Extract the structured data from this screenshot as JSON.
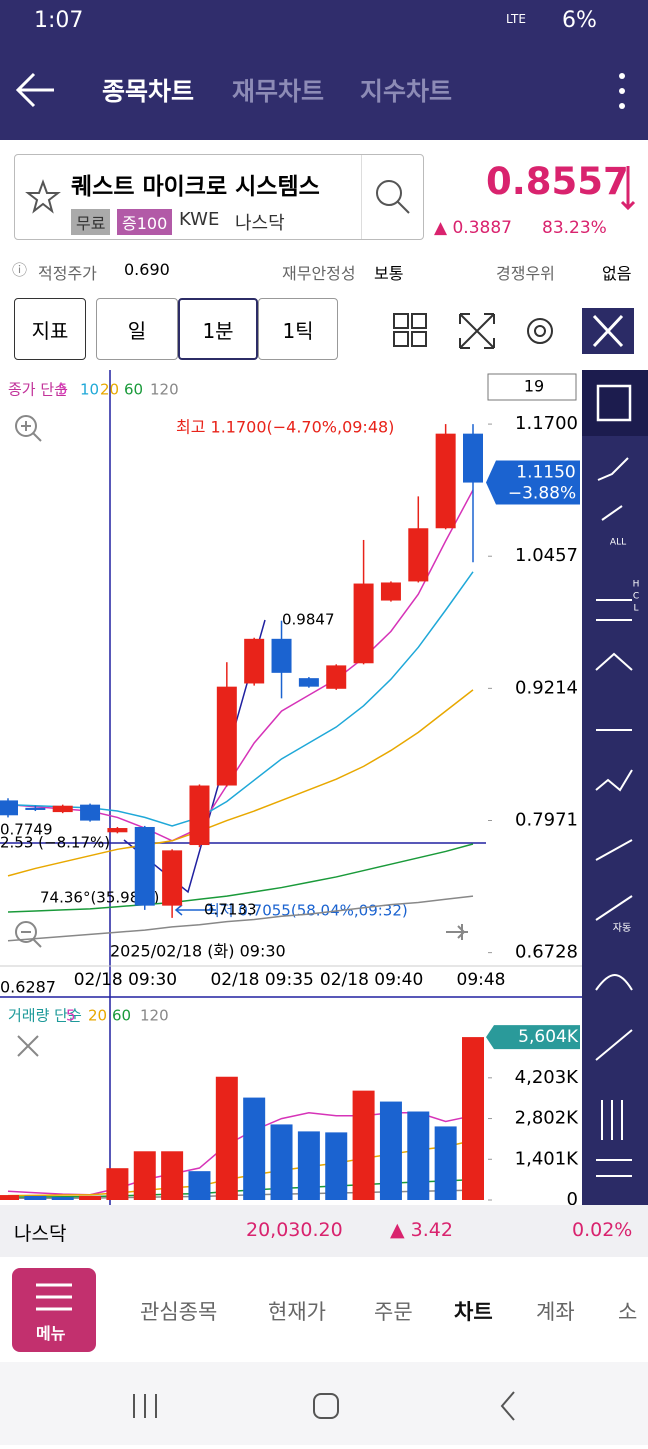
{
  "status_bar": {
    "time": "1:07",
    "network": "LTE",
    "battery": "6%"
  },
  "tabs": [
    "종목차트",
    "재무차트",
    "지수차트"
  ],
  "stock": {
    "name": "퀘스트 마이크로 시스템스",
    "tags": [
      "무료",
      "증100"
    ],
    "ticker": "KWE",
    "market": "나스닥",
    "price": "0.8557",
    "change": "0.3887",
    "change_pct": "83.23%"
  },
  "info": [
    {
      "label": "적정주가",
      "value": "0.690"
    },
    {
      "label": "재무안정성",
      "value": "보통"
    },
    {
      "label": "경쟁우위",
      "value": "없음"
    }
  ],
  "toolbar": [
    "지표",
    "일",
    "1분",
    "1틱"
  ],
  "period_input": "19",
  "side_labels": [
    "ALL",
    "H",
    "C",
    "L",
    "자동"
  ],
  "chart_data": [
    {
      "type": "candlestick",
      "legend_title": "종가 단순",
      "categories": [
        "",
        null,
        null,
        null,
        "02/18 09:30",
        null,
        null,
        null,
        null,
        "02/18 09:35",
        null,
        null,
        null,
        "02/18 09:40",
        null,
        null,
        null,
        "09:48"
      ],
      "open": [
        0.816,
        0.809,
        0.805,
        0.812,
        0.786,
        0.791,
        0.717,
        0.774,
        0.83,
        0.926,
        0.968,
        0.931,
        0.921,
        0.945,
        1.004,
        1.022,
        1.072,
        1.161
      ],
      "high": [
        0.818,
        0.811,
        0.812,
        0.813,
        0.791,
        0.792,
        0.77,
        0.831,
        0.946,
        0.969,
        0.985,
        0.932,
        0.944,
        1.061,
        1.022,
        1.102,
        1.17,
        1.17
      ],
      "low": [
        0.8,
        0.806,
        0.804,
        0.796,
        0.785,
        0.713,
        0.7055,
        0.772,
        0.829,
        0.924,
        0.912,
        0.922,
        0.92,
        0.944,
        1.003,
        1.021,
        1.071,
        1.04
      ],
      "close": [
        0.802,
        0.807,
        0.811,
        0.797,
        0.79,
        0.717,
        0.769,
        0.83,
        0.923,
        0.968,
        0.936,
        0.923,
        0.943,
        1.02,
        1.021,
        1.072,
        1.161,
        1.115
      ],
      "up_color": "#e8231a",
      "down_color": "#1b63d0",
      "ylim": [
        0.632,
        1.219
      ],
      "yticks": [
        {
          "value": 1.17,
          "label": "1.1700"
        },
        {
          "value": 1.0457,
          "label": "1.0457"
        },
        {
          "value": 0.9214,
          "label": "0.9214"
        },
        {
          "value": 0.7971,
          "label": "0.7971"
        },
        {
          "value": 0.6728,
          "label": "0.6728"
        }
      ],
      "lines": [
        {
          "name": "5",
          "color": "#d633b8",
          "values": [
            0.812,
            0.81,
            0.808,
            0.806,
            0.8,
            0.79,
            0.778,
            0.79,
            0.83,
            0.87,
            0.9,
            0.915,
            0.93,
            0.95,
            0.975,
            1.01,
            1.06,
            1.108
          ]
        },
        {
          "name": "10",
          "color": "#1fa8d8",
          "values": [
            0.812,
            0.811,
            0.81,
            0.809,
            0.806,
            0.8,
            0.792,
            0.8,
            0.815,
            0.835,
            0.855,
            0.87,
            0.885,
            0.905,
            0.93,
            0.96,
            0.995,
            1.031
          ]
        },
        {
          "name": "20",
          "color": "#e8a800",
          "values": [
            0.745,
            0.752,
            0.758,
            0.764,
            0.77,
            0.774,
            0.778,
            0.787,
            0.797,
            0.806,
            0.816,
            0.826,
            0.836,
            0.848,
            0.863,
            0.88,
            0.9,
            0.92
          ]
        },
        {
          "name": "60",
          "color": "#1a9a3a",
          "values": [
            0.711,
            0.712,
            0.713,
            0.714,
            0.716,
            0.718,
            0.72,
            0.723,
            0.726,
            0.73,
            0.734,
            0.739,
            0.744,
            0.75,
            0.756,
            0.762,
            0.768,
            0.775
          ]
        },
        {
          "name": "120",
          "color": "#888888",
          "values": [
            0.684,
            0.686,
            0.688,
            0.69,
            0.692,
            0.694,
            0.697,
            0.699,
            0.702,
            0.704,
            0.707,
            0.709,
            0.712,
            0.715,
            0.718,
            0.72,
            0.723,
            0.726
          ]
        }
      ],
      "annotations": {
        "high": "최고 1.1700(−4.70%,09:48)",
        "low": "최저 0.7055(58.04%,09:32)",
        "point_high": "0.9847",
        "crosshair_price": "0.7749",
        "drop": "2.53 (−8.17%)",
        "angle": "74.36°(35.98%)",
        "point_low": "0.7133",
        "crosshair_date": "2025/02/18 (화) 09:30",
        "bottom_price": "0.6287"
      },
      "current": {
        "value": 1.115,
        "label": "1.1150",
        "pct": "−3.88%"
      }
    },
    {
      "type": "volume",
      "legend_title": "거래량 단순",
      "values": [
        170,
        140,
        100,
        140,
        1094,
        1676,
        1676,
        992,
        4240,
        3523,
        2600,
        2360,
        2326,
        3762,
        3386,
        3044,
        2531,
        5604
      ],
      "colors": [
        "#e8231a",
        "#1b63d0",
        "#1b63d0",
        "#e8231a",
        "#e8231a",
        "#e8231a",
        "#e8231a",
        "#1b63d0",
        "#e8231a",
        "#1b63d0",
        "#1b63d0",
        "#1b63d0",
        "#1b63d0",
        "#e8231a",
        "#1b63d0",
        "#1b63d0",
        "#1b63d0",
        "#e8231a"
      ],
      "ylim": [
        0,
        6880
      ],
      "yticks": [
        {
          "value": 4203,
          "label": "4,203K"
        },
        {
          "value": 2802,
          "label": "2,802K"
        },
        {
          "value": 1401,
          "label": "1,401K"
        },
        0
      ],
      "lines": [
        {
          "name": "5",
          "color": "#d633b8",
          "values": [
            300,
            250,
            200,
            180,
            400,
            700,
            900,
            1100,
            1900,
            2400,
            2800,
            3000,
            2900,
            2900,
            3000,
            3000,
            2700,
            2900
          ]
        },
        {
          "name": "20",
          "color": "#e8a800",
          "values": [
            150,
            160,
            170,
            180,
            240,
            330,
            420,
            480,
            700,
            870,
            1020,
            1150,
            1270,
            1430,
            1580,
            1720,
            1830,
            2050
          ]
        },
        {
          "name": "60",
          "color": "#1a9a3a",
          "values": [
            100,
            105,
            110,
            115,
            140,
            170,
            200,
            220,
            290,
            350,
            400,
            440,
            480,
            530,
            580,
            620,
            660,
            700
          ]
        },
        {
          "name": "120",
          "color": "#888888",
          "values": [
            60,
            62,
            64,
            66,
            80,
            95,
            110,
            120,
            150,
            180,
            200,
            220,
            240,
            260,
            280,
            300,
            320,
            340
          ]
        }
      ],
      "current": {
        "value": 5604,
        "label": "5,604K"
      }
    }
  ],
  "market_bar": {
    "name": "나스닥",
    "value": "20,030.20",
    "change": "3.42",
    "change_pct": "0.02%"
  },
  "nav": {
    "menu": "메뉴",
    "items": [
      "관심종목",
      "현재가",
      "주문",
      "차트",
      "계좌",
      "소"
    ]
  }
}
